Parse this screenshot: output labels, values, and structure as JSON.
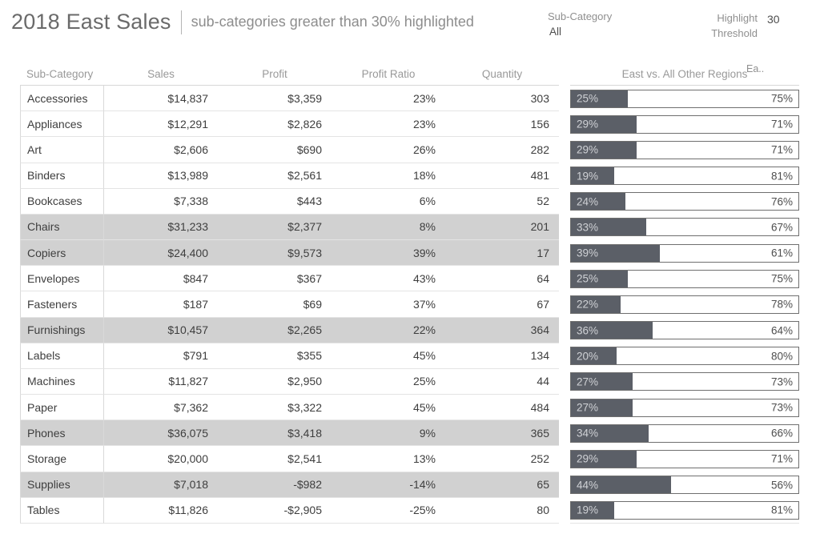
{
  "header": {
    "title": "2018 East Sales",
    "subtitle": "sub-categories greater than 30% highlighted",
    "filters": {
      "subcategory": {
        "label": "Sub-Category",
        "value": "All"
      },
      "threshold": {
        "label_line1": "Highlight",
        "label_line2": "Threshold",
        "value": "30"
      }
    }
  },
  "table": {
    "columns": [
      "Sub-Category",
      "Sales",
      "Profit",
      "Profit Ratio",
      "Quantity"
    ],
    "bar_column_header": "East vs. All Other Regions",
    "bar_legend_truncated": "Ea..",
    "rows": [
      {
        "subcategory": "Accessories",
        "sales": "$14,837",
        "profit": "$3,359",
        "profit_ratio": "23%",
        "quantity": "303",
        "east_pct": 25,
        "other_pct": 75,
        "highlighted": false
      },
      {
        "subcategory": "Appliances",
        "sales": "$12,291",
        "profit": "$2,826",
        "profit_ratio": "23%",
        "quantity": "156",
        "east_pct": 29,
        "other_pct": 71,
        "highlighted": false
      },
      {
        "subcategory": "Art",
        "sales": "$2,606",
        "profit": "$690",
        "profit_ratio": "26%",
        "quantity": "282",
        "east_pct": 29,
        "other_pct": 71,
        "highlighted": false
      },
      {
        "subcategory": "Binders",
        "sales": "$13,989",
        "profit": "$2,561",
        "profit_ratio": "18%",
        "quantity": "481",
        "east_pct": 19,
        "other_pct": 81,
        "highlighted": false
      },
      {
        "subcategory": "Bookcases",
        "sales": "$7,338",
        "profit": "$443",
        "profit_ratio": "6%",
        "quantity": "52",
        "east_pct": 24,
        "other_pct": 76,
        "highlighted": false
      },
      {
        "subcategory": "Chairs",
        "sales": "$31,233",
        "profit": "$2,377",
        "profit_ratio": "8%",
        "quantity": "201",
        "east_pct": 33,
        "other_pct": 67,
        "highlighted": true
      },
      {
        "subcategory": "Copiers",
        "sales": "$24,400",
        "profit": "$9,573",
        "profit_ratio": "39%",
        "quantity": "17",
        "east_pct": 39,
        "other_pct": 61,
        "highlighted": true
      },
      {
        "subcategory": "Envelopes",
        "sales": "$847",
        "profit": "$367",
        "profit_ratio": "43%",
        "quantity": "64",
        "east_pct": 25,
        "other_pct": 75,
        "highlighted": false
      },
      {
        "subcategory": "Fasteners",
        "sales": "$187",
        "profit": "$69",
        "profit_ratio": "37%",
        "quantity": "67",
        "east_pct": 22,
        "other_pct": 78,
        "highlighted": false
      },
      {
        "subcategory": "Furnishings",
        "sales": "$10,457",
        "profit": "$2,265",
        "profit_ratio": "22%",
        "quantity": "364",
        "east_pct": 36,
        "other_pct": 64,
        "highlighted": true
      },
      {
        "subcategory": "Labels",
        "sales": "$791",
        "profit": "$355",
        "profit_ratio": "45%",
        "quantity": "134",
        "east_pct": 20,
        "other_pct": 80,
        "highlighted": false
      },
      {
        "subcategory": "Machines",
        "sales": "$11,827",
        "profit": "$2,950",
        "profit_ratio": "25%",
        "quantity": "44",
        "east_pct": 27,
        "other_pct": 73,
        "highlighted": false
      },
      {
        "subcategory": "Paper",
        "sales": "$7,362",
        "profit": "$3,322",
        "profit_ratio": "45%",
        "quantity": "484",
        "east_pct": 27,
        "other_pct": 73,
        "highlighted": false
      },
      {
        "subcategory": "Phones",
        "sales": "$36,075",
        "profit": "$3,418",
        "profit_ratio": "9%",
        "quantity": "365",
        "east_pct": 34,
        "other_pct": 66,
        "highlighted": true
      },
      {
        "subcategory": "Storage",
        "sales": "$20,000",
        "profit": "$2,541",
        "profit_ratio": "13%",
        "quantity": "252",
        "east_pct": 29,
        "other_pct": 71,
        "highlighted": false
      },
      {
        "subcategory": "Supplies",
        "sales": "$7,018",
        "profit": "-$982",
        "profit_ratio": "-14%",
        "quantity": "65",
        "east_pct": 44,
        "other_pct": 56,
        "highlighted": true
      },
      {
        "subcategory": "Tables",
        "sales": "$11,826",
        "profit": "-$2,905",
        "profit_ratio": "-25%",
        "quantity": "80",
        "east_pct": 19,
        "other_pct": 81,
        "highlighted": false
      }
    ]
  },
  "chart_data": {
    "type": "bar",
    "orientation": "horizontal",
    "stacked_100pct": true,
    "title": "East vs. All Other Regions",
    "categories": [
      "Accessories",
      "Appliances",
      "Art",
      "Binders",
      "Bookcases",
      "Chairs",
      "Copiers",
      "Envelopes",
      "Fasteners",
      "Furnishings",
      "Labels",
      "Machines",
      "Paper",
      "Phones",
      "Storage",
      "Supplies",
      "Tables"
    ],
    "series": [
      {
        "name": "East %",
        "values": [
          25,
          29,
          29,
          19,
          24,
          33,
          39,
          25,
          22,
          36,
          20,
          27,
          27,
          34,
          29,
          44,
          19
        ]
      },
      {
        "name": "All Other Regions %",
        "values": [
          75,
          71,
          71,
          81,
          76,
          67,
          61,
          75,
          78,
          64,
          80,
          73,
          73,
          66,
          71,
          56,
          81
        ]
      }
    ],
    "xlim": [
      0,
      100
    ],
    "highlight_threshold": 30,
    "highlighted_categories": [
      "Chairs",
      "Copiers",
      "Furnishings",
      "Phones",
      "Supplies"
    ],
    "table_values": {
      "sales": [
        14837,
        12291,
        2606,
        13989,
        7338,
        31233,
        24400,
        847,
        187,
        10457,
        791,
        11827,
        7362,
        36075,
        20000,
        7018,
        11826
      ],
      "profit": [
        3359,
        2826,
        690,
        2561,
        443,
        2377,
        9573,
        367,
        69,
        2265,
        355,
        2950,
        3322,
        3418,
        2541,
        -982,
        -2905
      ],
      "profit_ratio_pct": [
        23,
        23,
        26,
        18,
        6,
        8,
        39,
        43,
        37,
        22,
        45,
        25,
        45,
        9,
        13,
        -14,
        -25
      ],
      "quantity": [
        303,
        156,
        282,
        481,
        52,
        201,
        17,
        64,
        67,
        364,
        134,
        44,
        484,
        365,
        252,
        65,
        80
      ]
    },
    "legend_position": "top-right-truncated"
  },
  "colors": {
    "bar_east": "#5b5f67",
    "bar_other": "#ffffff",
    "bar_border": "#6f6f6f",
    "highlight_row_bg": "#d1d1d1",
    "title_text": "#6a6a6a",
    "cell_text": "#3e3e3e"
  }
}
